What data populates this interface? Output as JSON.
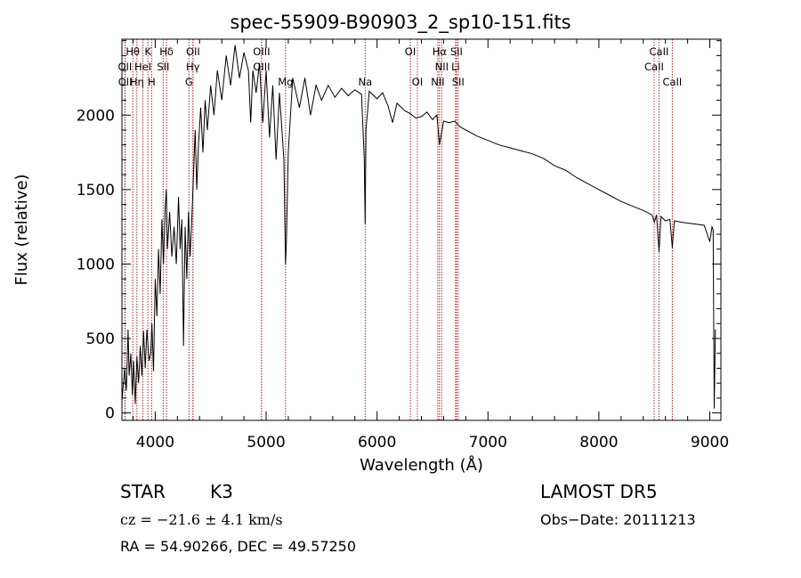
{
  "chart_data": {
    "type": "line",
    "title": "spec-55909-B90903_2_sp10-151.fits",
    "xlabel": "Wavelength (Å)",
    "ylabel": "Flux (relative)",
    "xlim": [
      3700,
      9100
    ],
    "ylim": [
      -50,
      2510
    ],
    "xticks": [
      4000,
      5000,
      6000,
      7000,
      8000,
      9000
    ],
    "yticks": [
      0,
      500,
      1000,
      1500,
      2000
    ],
    "line_color": "#000000",
    "marker_color": "#b22222",
    "series": [
      {
        "values": [
          [
            3700,
            80
          ],
          [
            3725,
            300
          ],
          [
            3740,
            150
          ],
          [
            3755,
            560
          ],
          [
            3765,
            250
          ],
          [
            3780,
            400
          ],
          [
            3795,
            120
          ],
          [
            3805,
            350
          ],
          [
            3820,
            60
          ],
          [
            3835,
            380
          ],
          [
            3850,
            200
          ],
          [
            3865,
            450
          ],
          [
            3880,
            250
          ],
          [
            3895,
            550
          ],
          [
            3910,
            300
          ],
          [
            3925,
            560
          ],
          [
            3945,
            350
          ],
          [
            3960,
            400
          ],
          [
            3970,
            600
          ],
          [
            3985,
            280
          ],
          [
            4000,
            900
          ],
          [
            4015,
            650
          ],
          [
            4030,
            1100
          ],
          [
            4045,
            800
          ],
          [
            4060,
            1300
          ],
          [
            4075,
            1000
          ],
          [
            4090,
            1380
          ],
          [
            4100,
            1500
          ],
          [
            4110,
            1100
          ],
          [
            4130,
            1350
          ],
          [
            4150,
            1050
          ],
          [
            4170,
            1250
          ],
          [
            4190,
            1000
          ],
          [
            4210,
            1450
          ],
          [
            4225,
            1100
          ],
          [
            4240,
            1300
          ],
          [
            4255,
            450
          ],
          [
            4270,
            1250
          ],
          [
            4285,
            900
          ],
          [
            4300,
            1350
          ],
          [
            4315,
            1050
          ],
          [
            4330,
            1300
          ],
          [
            4345,
            1600
          ],
          [
            4360,
            1900
          ],
          [
            4375,
            1500
          ],
          [
            4390,
            1800
          ],
          [
            4410,
            2050
          ],
          [
            4430,
            1750
          ],
          [
            4450,
            2100
          ],
          [
            4470,
            1900
          ],
          [
            4500,
            2200
          ],
          [
            4530,
            2000
          ],
          [
            4560,
            2300
          ],
          [
            4600,
            2100
          ],
          [
            4640,
            2400
          ],
          [
            4680,
            2200
          ],
          [
            4720,
            2470
          ],
          [
            4760,
            2250
          ],
          [
            4800,
            2420
          ],
          [
            4840,
            2300
          ],
          [
            4861,
            1950
          ],
          [
            4880,
            2300
          ],
          [
            4910,
            2150
          ],
          [
            4940,
            2350
          ],
          [
            4970,
            1950
          ],
          [
            5000,
            2300
          ],
          [
            5030,
            1850
          ],
          [
            5060,
            2200
          ],
          [
            5090,
            1700
          ],
          [
            5120,
            2150
          ],
          [
            5160,
            1700
          ],
          [
            5175,
            1000
          ],
          [
            5183,
            1150
          ],
          [
            5200,
            1750
          ],
          [
            5240,
            2250
          ],
          [
            5300,
            2050
          ],
          [
            5350,
            2250
          ],
          [
            5400,
            2000
          ],
          [
            5450,
            2200
          ],
          [
            5500,
            2100
          ],
          [
            5560,
            2200
          ],
          [
            5620,
            2120
          ],
          [
            5680,
            2180
          ],
          [
            5740,
            2130
          ],
          [
            5800,
            2170
          ],
          [
            5860,
            2140
          ],
          [
            5885,
            1700
          ],
          [
            5893,
            1270
          ],
          [
            5900,
            1900
          ],
          [
            5930,
            2160
          ],
          [
            6000,
            2110
          ],
          [
            6050,
            2150
          ],
          [
            6100,
            2060
          ],
          [
            6140,
            1950
          ],
          [
            6180,
            2080
          ],
          [
            6250,
            2030
          ],
          [
            6300,
            2010
          ],
          [
            6350,
            1980
          ],
          [
            6400,
            1990
          ],
          [
            6450,
            2020
          ],
          [
            6500,
            1970
          ],
          [
            6540,
            2000
          ],
          [
            6563,
            1800
          ],
          [
            6600,
            1960
          ],
          [
            6650,
            1950
          ],
          [
            6700,
            1960
          ],
          [
            6750,
            1920
          ],
          [
            6800,
            1900
          ],
          [
            6850,
            1880
          ],
          [
            6900,
            1860
          ],
          [
            7000,
            1830
          ],
          [
            7100,
            1800
          ],
          [
            7200,
            1780
          ],
          [
            7300,
            1760
          ],
          [
            7400,
            1740
          ],
          [
            7500,
            1710
          ],
          [
            7600,
            1660
          ],
          [
            7700,
            1630
          ],
          [
            7800,
            1580
          ],
          [
            7900,
            1540
          ],
          [
            8000,
            1500
          ],
          [
            8100,
            1460
          ],
          [
            8200,
            1420
          ],
          [
            8300,
            1390
          ],
          [
            8400,
            1360
          ],
          [
            8480,
            1330
          ],
          [
            8500,
            1280
          ],
          [
            8520,
            1330
          ],
          [
            8542,
            1080
          ],
          [
            8560,
            1320
          ],
          [
            8600,
            1290
          ],
          [
            8640,
            1300
          ],
          [
            8662,
            1110
          ],
          [
            8680,
            1290
          ],
          [
            8750,
            1280
          ],
          [
            8850,
            1270
          ],
          [
            8950,
            1260
          ],
          [
            9000,
            1150
          ],
          [
            9020,
            1250
          ],
          [
            9030,
            1230
          ],
          [
            9040,
            30
          ],
          [
            9050,
            560
          ]
        ]
      }
    ],
    "markers": [
      {
        "label": "Hθ",
        "x": 3798,
        "row": 1
      },
      {
        "label": "K",
        "x": 3934,
        "row": 1
      },
      {
        "label": "Hδ",
        "x": 4102,
        "row": 1
      },
      {
        "label": "OII",
        "x": 4341,
        "row": 1
      },
      {
        "label": "OIII",
        "x": 4959,
        "row": 1
      },
      {
        "label": "OI",
        "x": 6300,
        "row": 1
      },
      {
        "label": "Hα",
        "x": 6563,
        "row": 1
      },
      {
        "label": "SII",
        "x": 6716,
        "row": 1
      },
      {
        "label": "CaII",
        "x": 8542,
        "row": 1
      },
      {
        "label": "OII",
        "x": 3727,
        "row": 2
      },
      {
        "label": "HeI",
        "x": 3889,
        "row": 2
      },
      {
        "label": "SII",
        "x": 4072,
        "row": 2
      },
      {
        "label": "Hγ",
        "x": 4340,
        "row": 2
      },
      {
        "label": "OIII",
        "x": 4959,
        "row": 2
      },
      {
        "label": "NII",
        "x": 6583,
        "row": 2
      },
      {
        "label": "Li",
        "x": 6708,
        "row": 2
      },
      {
        "label": "CaII",
        "x": 8498,
        "row": 2
      },
      {
        "label": "OII",
        "x": 3729,
        "row": 3
      },
      {
        "label": "Hη",
        "x": 3835,
        "row": 3
      },
      {
        "label": "H",
        "x": 3968,
        "row": 3
      },
      {
        "label": "G",
        "x": 4304,
        "row": 3
      },
      {
        "label": "Mg",
        "x": 5175,
        "row": 3
      },
      {
        "label": "Na",
        "x": 5893,
        "row": 3
      },
      {
        "label": "OI",
        "x": 6364,
        "row": 3
      },
      {
        "label": "NII",
        "x": 6548,
        "row": 3
      },
      {
        "label": "SII",
        "x": 6731,
        "row": 3
      },
      {
        "label": "CaII",
        "x": 8662,
        "row": 3
      }
    ]
  },
  "info": {
    "class_label": "STAR",
    "subclass": "K3",
    "survey": "LAMOST  DR5",
    "cz": "cz = −21.6 ± 4.1 km/s",
    "obs_date": "Obs−Date: 20111213",
    "radec": "RA =  54.90266, DEC =  49.57250"
  }
}
